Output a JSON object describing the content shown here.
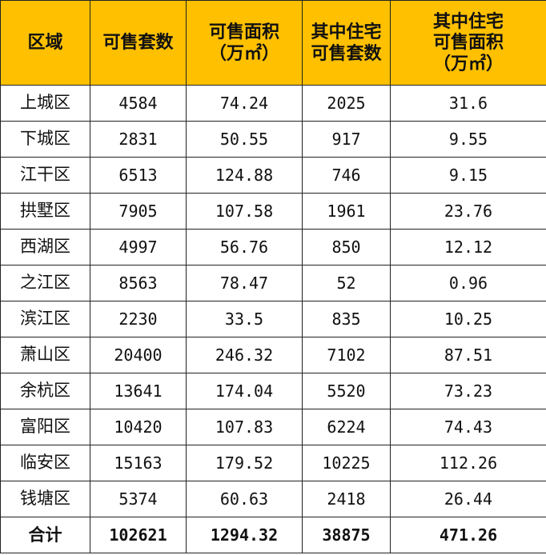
{
  "header": {
    "col1": [
      "区域"
    ],
    "col2": [
      "可售套数"
    ],
    "col3": [
      "可售面积",
      "（万㎡）"
    ],
    "col4": [
      "其中住宅",
      "可售套数"
    ],
    "col5": [
      "其中住宅",
      "可售面积",
      "（万㎡）"
    ]
  },
  "rows": [
    [
      "上城区",
      "4584",
      "74.24",
      "2025",
      "31.6"
    ],
    [
      "下城区",
      "2831",
      "50.55",
      "917",
      "9.55"
    ],
    [
      "江干区",
      "6513",
      "124.88",
      "746",
      "9.15"
    ],
    [
      "拱墅区",
      "7905",
      "107.58",
      "1961",
      "23.76"
    ],
    [
      "西湖区",
      "4997",
      "56.76",
      "850",
      "12.12"
    ],
    [
      "之江区",
      "8563",
      "78.47",
      "52",
      "0.96"
    ],
    [
      "滨江区",
      "2230",
      "33.5",
      "835",
      "10.25"
    ],
    [
      "萧山区",
      "20400",
      "246.32",
      "7102",
      "87.51"
    ],
    [
      "余杭区",
      "13641",
      "174.04",
      "5520",
      "73.23"
    ],
    [
      "富阳区",
      "10420",
      "107.83",
      "6224",
      "74.43"
    ],
    [
      "临安区",
      "15163",
      "179.52",
      "10225",
      "112.26"
    ],
    [
      "钱塘区",
      "5374",
      "60.63",
      "2418",
      "26.44"
    ]
  ],
  "total": [
    "合计",
    "102621",
    "1294.32",
    "38875",
    "471.26"
  ],
  "colors": {
    "header_bg": "#FFC000",
    "border": "#222222",
    "text": "#111111"
  }
}
